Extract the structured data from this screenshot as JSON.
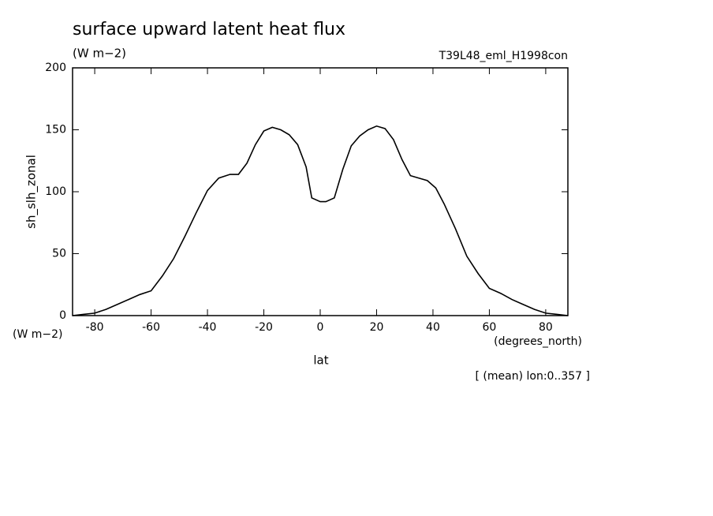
{
  "chart_data": {
    "type": "line",
    "title": "surface upward latent heat flux",
    "subtitle": "(W m−2)",
    "run_label": "T39L48_eml_H1998con",
    "y_label": "sh_slh_zonal",
    "y_units": "(W m−2)",
    "x_units": "(degrees_north)",
    "x_label": "lat",
    "note": "[ (mean) lon:0..357 ]",
    "x": [
      -87.86,
      -84,
      -80,
      -76,
      -72,
      -68,
      -64,
      -60,
      -56,
      -52,
      -48,
      -44,
      -40,
      -36,
      -32,
      -29,
      -26,
      -23,
      -20,
      -17,
      -14,
      -11,
      -8,
      -5,
      -3,
      0,
      2,
      5,
      8,
      11,
      14,
      17,
      20,
      23,
      26,
      29,
      32,
      35,
      38,
      41,
      44,
      48,
      52,
      56,
      60,
      64,
      68,
      72,
      76,
      80,
      84,
      87.86
    ],
    "series": [
      {
        "name": "sh_slh_zonal",
        "color": "#000000",
        "values": [
          0,
          1,
          2,
          5,
          9,
          13,
          17,
          20,
          32,
          46,
          64,
          83,
          101,
          111,
          114,
          114,
          123,
          138,
          149,
          152,
          150,
          146,
          138,
          120,
          95,
          92,
          92,
          95,
          118,
          137,
          145,
          150,
          153,
          151,
          142,
          126,
          113,
          111,
          109,
          103,
          90,
          70,
          48,
          34,
          22,
          18,
          13,
          9,
          5,
          2,
          1,
          0
        ]
      }
    ],
    "xlim": [
      -87.86,
      87.86
    ],
    "ylim": [
      0,
      200
    ],
    "xticks": [
      -80,
      -60,
      -40,
      -20,
      0,
      20,
      40,
      60,
      80
    ],
    "yticks": [
      0,
      50,
      100,
      150,
      200
    ]
  }
}
